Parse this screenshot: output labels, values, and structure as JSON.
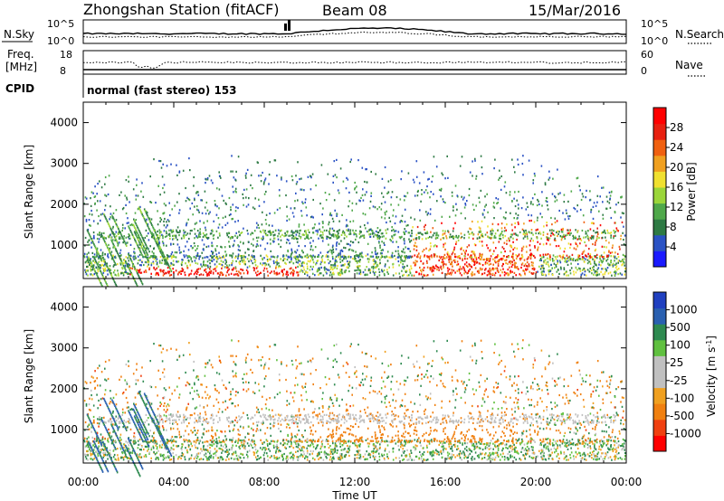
{
  "header": {
    "station": "Zhongshan Station (fitACF)",
    "beam": "Beam 08",
    "date": "15/Mar/2016"
  },
  "params_panel": {
    "nsky_label": "N.Sky",
    "nsky_ticks": [
      "10^5",
      "10^0"
    ],
    "nsearch_label": "N.Search",
    "nsearch_ticks": [
      "10^5",
      "10^0"
    ],
    "freq_label_1": "Freq.",
    "freq_label_2": "[MHz]",
    "freq_ticks": [
      "18",
      "8"
    ],
    "nave_label": "Nave",
    "nave_ticks": [
      "60",
      "0"
    ],
    "cpid_label": "CPID",
    "cpid_text": "normal (fast stereo) 153"
  },
  "chart_data": [
    {
      "type": "heatmap",
      "title": "",
      "xlabel": "Time UT",
      "ylabel": "Slant Range [km]",
      "x_ticks": [
        "00:00",
        "04:00",
        "08:00",
        "12:00",
        "16:00",
        "20:00",
        "00:00"
      ],
      "y_ticks": [
        1000,
        2000,
        3000,
        4000
      ],
      "ylim": [
        180,
        4500
      ],
      "colorbar": {
        "label": "Power [dB]",
        "ticks": [
          "4",
          "8",
          "12",
          "16",
          "20",
          "24",
          "28"
        ],
        "range": [
          0,
          30
        ],
        "colors": [
          "#1a1aff",
          "#2a52c4",
          "#2e7a44",
          "#4fa84a",
          "#9bd63a",
          "#f0e030",
          "#f0a020",
          "#f06010",
          "#e82010",
          "#ff0000"
        ]
      },
      "ground_scatter": false,
      "features": [
        {
          "desc": "near-range echoes",
          "range_km": [
            250,
            700
          ],
          "time_hr": [
            0,
            24
          ]
        },
        {
          "desc": "strong power burst",
          "range_km": [
            250,
            450
          ],
          "time_hr": [
            2,
            9.5
          ],
          "power_db": 28
        },
        {
          "desc": "far-range scattered echoes",
          "range_km": [
            1000,
            2500
          ],
          "time_hr": [
            0,
            24
          ]
        },
        {
          "desc": "intense afternoon echoes",
          "range_km": [
            400,
            1600
          ],
          "time_hr": [
            14.5,
            23.8
          ],
          "power_db": 26
        }
      ]
    },
    {
      "type": "heatmap",
      "title": "",
      "xlabel": "Time UT",
      "ylabel": "Slant Range [km]",
      "x_ticks": [
        "00:00",
        "04:00",
        "08:00",
        "12:00",
        "16:00",
        "20:00",
        "00:00"
      ],
      "y_ticks": [
        1000,
        2000,
        3000,
        4000
      ],
      "ylim": [
        180,
        4500
      ],
      "colorbar": {
        "label": "Velocity [m s^-1]",
        "label_main": "Velocity [m s",
        "label_sup": "-1",
        "label_tail": "]",
        "ticks": [
          "1000",
          "500",
          "100",
          "25",
          "-25",
          "-100",
          "-500",
          "-1000"
        ],
        "range": [
          -1000,
          1000
        ],
        "colors": [
          "#ff0000",
          "#f04010",
          "#f08010",
          "#f0a020",
          "#c0c0c0",
          "#c0c0c0",
          "#60c040",
          "#2e8a50",
          "#2a60b0",
          "#2040c0"
        ]
      },
      "ground_scatter": true,
      "features": [
        {
          "desc": "ground scatter (grey) band",
          "range_km": [
            1100,
            1400
          ],
          "time_hr": [
            0.5,
            23.5
          ]
        },
        {
          "desc": "near-range green/orange mix",
          "range_km": [
            250,
            600
          ],
          "time_hr": [
            0,
            24
          ]
        },
        {
          "desc": "orange negative velocities afternoon",
          "range_km": [
            500,
            1500
          ],
          "time_hr": [
            10,
            19
          ]
        }
      ]
    }
  ]
}
